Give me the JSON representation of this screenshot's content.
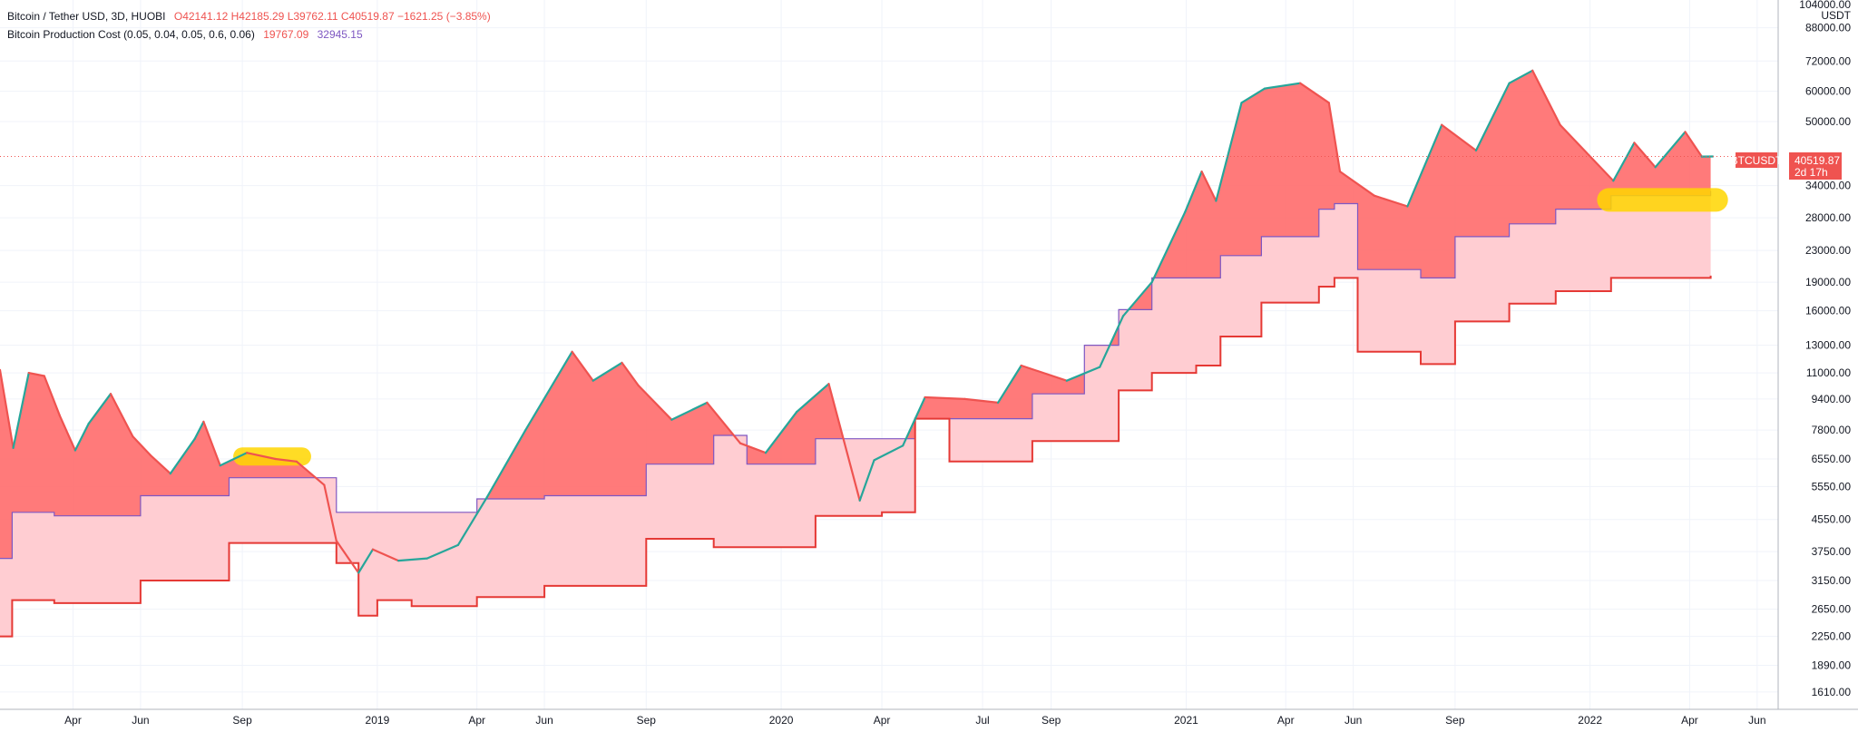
{
  "legend": {
    "symbol_title": "Bitcoin / Tether USD, 3D, HUOBI",
    "open_label": "O",
    "open": "42141.12",
    "high_label": "H",
    "high": "42185.29",
    "low_label": "L",
    "low": "39762.11",
    "close_label": "C",
    "close": "40519.87",
    "change": "−1621.25 (−3.85%)",
    "indicator_title": "Bitcoin Production Cost (0.05, 0.04, 0.05, 0.6, 0.06)",
    "indicator_lower": "19767.09",
    "indicator_upper": "32945.15"
  },
  "price_axis": {
    "currency": "USDT",
    "top_label": "104000.00"
  },
  "last_price": {
    "symbol": "BTCUSDT",
    "price": "40519.87",
    "countdown": "2d 17h"
  },
  "colors": {
    "up": "#26a69a",
    "down": "#ef5350",
    "band_fill": "#ffcdd2",
    "band_fill_above": "#ff6b6b",
    "upper_line": "#7e57c2",
    "lower_line": "#e53935",
    "highlight": "#ffd600",
    "grid": "#f0f3fa"
  },
  "chart_data": {
    "type": "line",
    "scale": "log",
    "x_range": [
      "2018-01-25",
      "2022-06-20"
    ],
    "y_range": [
      1450,
      104000
    ],
    "grid": true,
    "price_ticks": [
      1610,
      1890,
      2250,
      2650,
      3150,
      3750,
      4550,
      5550,
      6550,
      7800,
      9400,
      11000,
      13000,
      16000,
      19000,
      23000,
      28000,
      34000,
      50000,
      60000,
      72000,
      88000
    ],
    "price_tick_labels": [
      "1610.00",
      "1890.00",
      "2250.00",
      "2650.00",
      "3150.00",
      "3750.00",
      "4550.00",
      "5550.00",
      "6550.00",
      "7800.00",
      "9400.00",
      "11000.00",
      "13000.00",
      "16000.00",
      "19000.00",
      "23000.00",
      "28000.00",
      "34000.00",
      "50000.00",
      "60000.00",
      "72000.00",
      "88000.00"
    ],
    "time_ticks": [
      {
        "date": "2018-04-01",
        "label": "Apr"
      },
      {
        "date": "2018-06-01",
        "label": "Jun"
      },
      {
        "date": "2018-09-01",
        "label": "Sep"
      },
      {
        "date": "2019-01-01",
        "label": "2019"
      },
      {
        "date": "2019-04-01",
        "label": "Apr"
      },
      {
        "date": "2019-06-01",
        "label": "Jun"
      },
      {
        "date": "2019-09-01",
        "label": "Sep"
      },
      {
        "date": "2020-01-01",
        "label": "2020"
      },
      {
        "date": "2020-04-01",
        "label": "Apr"
      },
      {
        "date": "2020-07-01",
        "label": "Jul"
      },
      {
        "date": "2020-09-01",
        "label": "Sep"
      },
      {
        "date": "2021-01-01",
        "label": "2021"
      },
      {
        "date": "2021-04-01",
        "label": "Apr"
      },
      {
        "date": "2021-06-01",
        "label": "Jun"
      },
      {
        "date": "2021-09-01",
        "label": "Sep"
      },
      {
        "date": "2022-01-01",
        "label": "2022"
      },
      {
        "date": "2022-04-01",
        "label": "Apr"
      },
      {
        "date": "2022-06-01",
        "label": "Jun"
      }
    ],
    "series": [
      {
        "name": "BTCUSDT",
        "kind": "close",
        "points": [
          [
            "2018-01-25",
            11200
          ],
          [
            "2018-02-06",
            7000
          ],
          [
            "2018-02-20",
            11000
          ],
          [
            "2018-03-06",
            10800
          ],
          [
            "2018-03-20",
            8500
          ],
          [
            "2018-04-03",
            6900
          ],
          [
            "2018-04-15",
            8100
          ],
          [
            "2018-05-05",
            9700
          ],
          [
            "2018-05-25",
            7500
          ],
          [
            "2018-06-10",
            6700
          ],
          [
            "2018-06-28",
            6000
          ],
          [
            "2018-07-20",
            7400
          ],
          [
            "2018-07-28",
            8200
          ],
          [
            "2018-08-12",
            6300
          ],
          [
            "2018-09-05",
            6800
          ],
          [
            "2018-10-01",
            6550
          ],
          [
            "2018-10-20",
            6450
          ],
          [
            "2018-11-14",
            5600
          ],
          [
            "2018-11-25",
            4000
          ],
          [
            "2018-12-15",
            3300
          ],
          [
            "2018-12-28",
            3800
          ],
          [
            "2019-01-20",
            3550
          ],
          [
            "2019-02-15",
            3600
          ],
          [
            "2019-03-15",
            3900
          ],
          [
            "2019-04-10",
            5200
          ],
          [
            "2019-05-15",
            7800
          ],
          [
            "2019-06-26",
            12500
          ],
          [
            "2019-07-15",
            10500
          ],
          [
            "2019-08-10",
            11700
          ],
          [
            "2019-08-25",
            10200
          ],
          [
            "2019-09-24",
            8300
          ],
          [
            "2019-10-26",
            9200
          ],
          [
            "2019-11-25",
            7200
          ],
          [
            "2019-12-18",
            6800
          ],
          [
            "2020-01-15",
            8700
          ],
          [
            "2020-02-13",
            10300
          ],
          [
            "2020-03-12",
            5100
          ],
          [
            "2020-03-25",
            6500
          ],
          [
            "2020-04-20",
            7100
          ],
          [
            "2020-05-10",
            9500
          ],
          [
            "2020-06-15",
            9400
          ],
          [
            "2020-07-15",
            9200
          ],
          [
            "2020-08-05",
            11500
          ],
          [
            "2020-09-15",
            10500
          ],
          [
            "2020-10-15",
            11400
          ],
          [
            "2020-11-05",
            15500
          ],
          [
            "2020-12-01",
            19000
          ],
          [
            "2020-12-31",
            29000
          ],
          [
            "2021-01-15",
            37000
          ],
          [
            "2021-01-28",
            31000
          ],
          [
            "2021-02-20",
            56000
          ],
          [
            "2021-03-13",
            61000
          ],
          [
            "2021-04-14",
            63000
          ],
          [
            "2021-05-10",
            56000
          ],
          [
            "2021-05-20",
            37000
          ],
          [
            "2021-06-20",
            32000
          ],
          [
            "2021-07-20",
            30000
          ],
          [
            "2021-08-20",
            49000
          ],
          [
            "2021-09-20",
            42000
          ],
          [
            "2021-10-20",
            63000
          ],
          [
            "2021-11-10",
            68000
          ],
          [
            "2021-12-05",
            49000
          ],
          [
            "2022-01-22",
            35000
          ],
          [
            "2022-02-10",
            44000
          ],
          [
            "2022-03-01",
            38000
          ],
          [
            "2022-03-28",
            47000
          ],
          [
            "2022-04-12",
            40500
          ],
          [
            "2022-04-22",
            40519.87
          ]
        ]
      },
      {
        "name": "upper",
        "kind": "step",
        "points": [
          [
            "2018-01-25",
            3600
          ],
          [
            "2018-02-05",
            4750
          ],
          [
            "2018-03-15",
            4650
          ],
          [
            "2018-05-01",
            4650
          ],
          [
            "2018-06-01",
            5250
          ],
          [
            "2018-07-10",
            5250
          ],
          [
            "2018-08-20",
            5850
          ],
          [
            "2018-10-10",
            5850
          ],
          [
            "2018-11-10",
            5850
          ],
          [
            "2018-11-25",
            4750
          ],
          [
            "2019-01-25",
            4750
          ],
          [
            "2019-03-01",
            4750
          ],
          [
            "2019-04-01",
            5150
          ],
          [
            "2019-05-20",
            5150
          ],
          [
            "2019-06-01",
            5250
          ],
          [
            "2019-07-20",
            5250
          ],
          [
            "2019-09-01",
            6350
          ],
          [
            "2019-11-01",
            7550
          ],
          [
            "2019-12-01",
            6350
          ],
          [
            "2020-02-01",
            7400
          ],
          [
            "2020-04-01",
            7400
          ],
          [
            "2020-05-01",
            8350
          ],
          [
            "2020-06-01",
            8350
          ],
          [
            "2020-07-10",
            8350
          ],
          [
            "2020-08-15",
            9700
          ],
          [
            "2020-10-01",
            13000
          ],
          [
            "2020-11-01",
            16100
          ],
          [
            "2020-12-01",
            19500
          ],
          [
            "2021-01-10",
            19500
          ],
          [
            "2021-02-01",
            22300
          ],
          [
            "2021-03-10",
            25000
          ],
          [
            "2021-05-01",
            29500
          ],
          [
            "2021-05-15",
            30500
          ],
          [
            "2021-06-05",
            20500
          ],
          [
            "2021-08-01",
            19500
          ],
          [
            "2021-09-01",
            25000
          ],
          [
            "2021-10-20",
            27000
          ],
          [
            "2021-12-01",
            29500
          ],
          [
            "2022-01-20",
            32000
          ],
          [
            "2022-04-20",
            32945.15
          ]
        ]
      },
      {
        "name": "lower",
        "kind": "step",
        "points": [
          [
            "2018-01-25",
            2250
          ],
          [
            "2018-02-05",
            2800
          ],
          [
            "2018-03-15",
            2750
          ],
          [
            "2018-05-01",
            2750
          ],
          [
            "2018-06-01",
            3150
          ],
          [
            "2018-07-10",
            3150
          ],
          [
            "2018-08-20",
            3950
          ],
          [
            "2018-10-10",
            3950
          ],
          [
            "2018-11-10",
            3950
          ],
          [
            "2018-11-25",
            3500
          ],
          [
            "2018-12-15",
            2550
          ],
          [
            "2019-01-01",
            2800
          ],
          [
            "2019-02-01",
            2700
          ],
          [
            "2019-03-01",
            2700
          ],
          [
            "2019-04-01",
            2850
          ],
          [
            "2019-05-20",
            2850
          ],
          [
            "2019-06-01",
            3050
          ],
          [
            "2019-07-20",
            3050
          ],
          [
            "2019-09-01",
            4050
          ],
          [
            "2019-11-01",
            3850
          ],
          [
            "2019-12-01",
            3850
          ],
          [
            "2020-02-01",
            4650
          ],
          [
            "2020-04-01",
            4750
          ],
          [
            "2020-05-01",
            8350
          ],
          [
            "2020-06-01",
            6450
          ],
          [
            "2020-07-10",
            6450
          ],
          [
            "2020-08-15",
            7300
          ],
          [
            "2020-10-01",
            7300
          ],
          [
            "2020-11-01",
            9900
          ],
          [
            "2020-12-01",
            11000
          ],
          [
            "2021-01-10",
            11500
          ],
          [
            "2021-02-01",
            13700
          ],
          [
            "2021-03-10",
            16800
          ],
          [
            "2021-05-01",
            18500
          ],
          [
            "2021-05-15",
            19500
          ],
          [
            "2021-06-05",
            12500
          ],
          [
            "2021-08-01",
            11600
          ],
          [
            "2021-09-01",
            15000
          ],
          [
            "2021-10-20",
            16700
          ],
          [
            "2021-12-01",
            18000
          ],
          [
            "2022-01-20",
            19500
          ],
          [
            "2022-04-20",
            19767.09
          ]
        ]
      }
    ]
  }
}
